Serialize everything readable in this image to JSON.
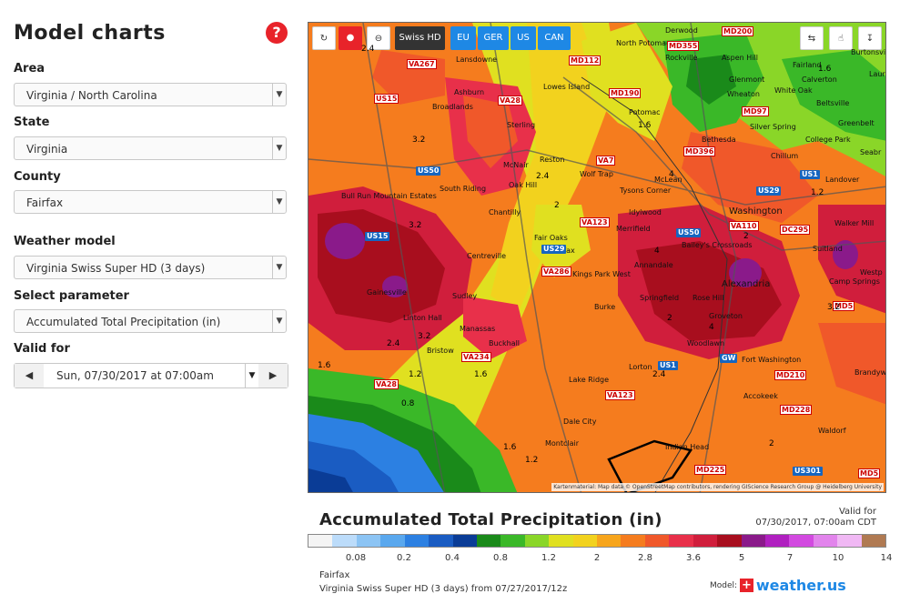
{
  "sidebar": {
    "title": "Model charts",
    "help_icon": "?",
    "area": {
      "label": "Area",
      "value": "Virginia / North Carolina"
    },
    "state": {
      "label": "State",
      "value": "Virginia"
    },
    "county": {
      "label": "County",
      "value": "Fairfax"
    },
    "model": {
      "label": "Weather model",
      "value": "Virginia Swiss Super HD (3 days)"
    },
    "parameter": {
      "label": "Select parameter",
      "value": "Accumulated Total Precipitation  (in)"
    },
    "valid": {
      "label": "Valid for",
      "value": "Sun, 07/30/2017 at 07:00am"
    }
  },
  "toolbar": {
    "swiss_hd": "Swiss HD",
    "eu": "EU",
    "ger": "GER",
    "us": "US",
    "can": "CAN"
  },
  "map": {
    "credit": "Kartenmaterial: Map data © OpenStreetMap contributors, rendering GIScience Research Group @ Heidelberg University",
    "places": [
      "Lansdowne",
      "North Potomac",
      "Derwood",
      "Rockville",
      "Aspen Hill",
      "Fairland",
      "Calverton",
      "Ashburn",
      "Lowes Island",
      "Glenmont",
      "Wheaton",
      "White Oak",
      "Beltsville",
      "Broadlands",
      "Potomac",
      "Greenbelt",
      "Sterling",
      "Bethesda",
      "Silver Spring",
      "College Park",
      "Reston",
      "Chillum",
      "McNair",
      "Wolf Trap",
      "McLean",
      "Landover",
      "South Riding",
      "Oak Hill",
      "Tysons Corner",
      "Bull Run Mountain Estates",
      "Chantilly",
      "Idylwood",
      "Washington",
      "Merrifield",
      "Walker Mill",
      "Fair Oaks",
      "Fairfax",
      "Bailey's Crossroads",
      "Centreville",
      "Annandale",
      "Suitland",
      "Kings Park West",
      "Gainesville",
      "Sudley",
      "Alexandria",
      "Camp Springs",
      "Springfield",
      "Rose Hill",
      "Linton Hall",
      "Burke",
      "Groveton",
      "Manassas",
      "Buckhall",
      "Woodlawn",
      "Bristow",
      "Fort Washington",
      "Lorton",
      "Lake Ridge",
      "Accokeek",
      "Dale City",
      "Waldorf",
      "Montclair",
      "Indian Head",
      "Brandywine",
      "Westp",
      "Seabr",
      "Laure",
      "Burtonsville"
    ],
    "contours": [
      "2.4",
      "3.2",
      "1.6",
      "2.4",
      "2",
      "3.2",
      "4",
      "4",
      "3.2",
      "2.4",
      "1.6",
      "1.2",
      "1.6",
      "0.8",
      "1.6",
      "1.2",
      "2",
      "2.4",
      "3.2",
      "4",
      "2",
      "2",
      "1.2",
      "1.6"
    ]
  },
  "legend": {
    "title": "Accumulated Total Precipitation (in)",
    "valid_label": "Valid for",
    "valid_value": "07/30/2017, 07:00am CDT",
    "ticks": [
      "0.08",
      "0.2",
      "0.4",
      "0.8",
      "1.2",
      "2",
      "2.8",
      "3.6",
      "5",
      "7",
      "10",
      "14"
    ],
    "colors": [
      "#f4f4f4",
      "#bcdcfa",
      "#8cc4f4",
      "#5aa8ee",
      "#2c80e2",
      "#1a5cc2",
      "#0a3c96",
      "#1a8a1a",
      "#3ab828",
      "#8ad628",
      "#e0e020",
      "#f2d21e",
      "#f7a51c",
      "#f57c1e",
      "#f0582a",
      "#e8304a",
      "#d01e3c",
      "#a80e1e",
      "#8a1a8a",
      "#b020c0",
      "#d24ae0",
      "#e284ec",
      "#f0b8f4",
      "#b07a52"
    ],
    "county": "Fairfax",
    "model_line": "Virginia Swiss Super HD (3 days)  from 07/27/2017/12z",
    "model_label": "Model:",
    "brand": "weather.us"
  }
}
